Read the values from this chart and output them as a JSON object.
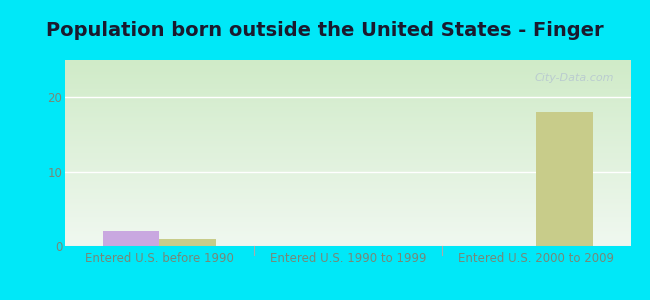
{
  "title": "Population born outside the United States - Finger",
  "categories": [
    "Entered U.S. before 1990",
    "Entered U.S. 1990 to 1999",
    "Entered U.S. 2000 to 2009"
  ],
  "native_values": [
    2,
    0,
    0
  ],
  "foreign_values": [
    1,
    0,
    18
  ],
  "native_color": "#c9a8e0",
  "foreign_color": "#c8cc8a",
  "plot_bg_top": "#f0f8f0",
  "plot_bg_bottom": "#d8f0d0",
  "fig_bg_color": "#00e8f8",
  "ylim": [
    0,
    25
  ],
  "yticks": [
    0,
    10,
    20
  ],
  "bar_width": 0.3,
  "title_fontsize": 14,
  "axis_label_fontsize": 8.5,
  "legend_fontsize": 10,
  "watermark_text": "City-Data.com",
  "watermark_color": "#b8c8d0",
  "grid_color": "#ffffff",
  "tick_color": "#778877"
}
